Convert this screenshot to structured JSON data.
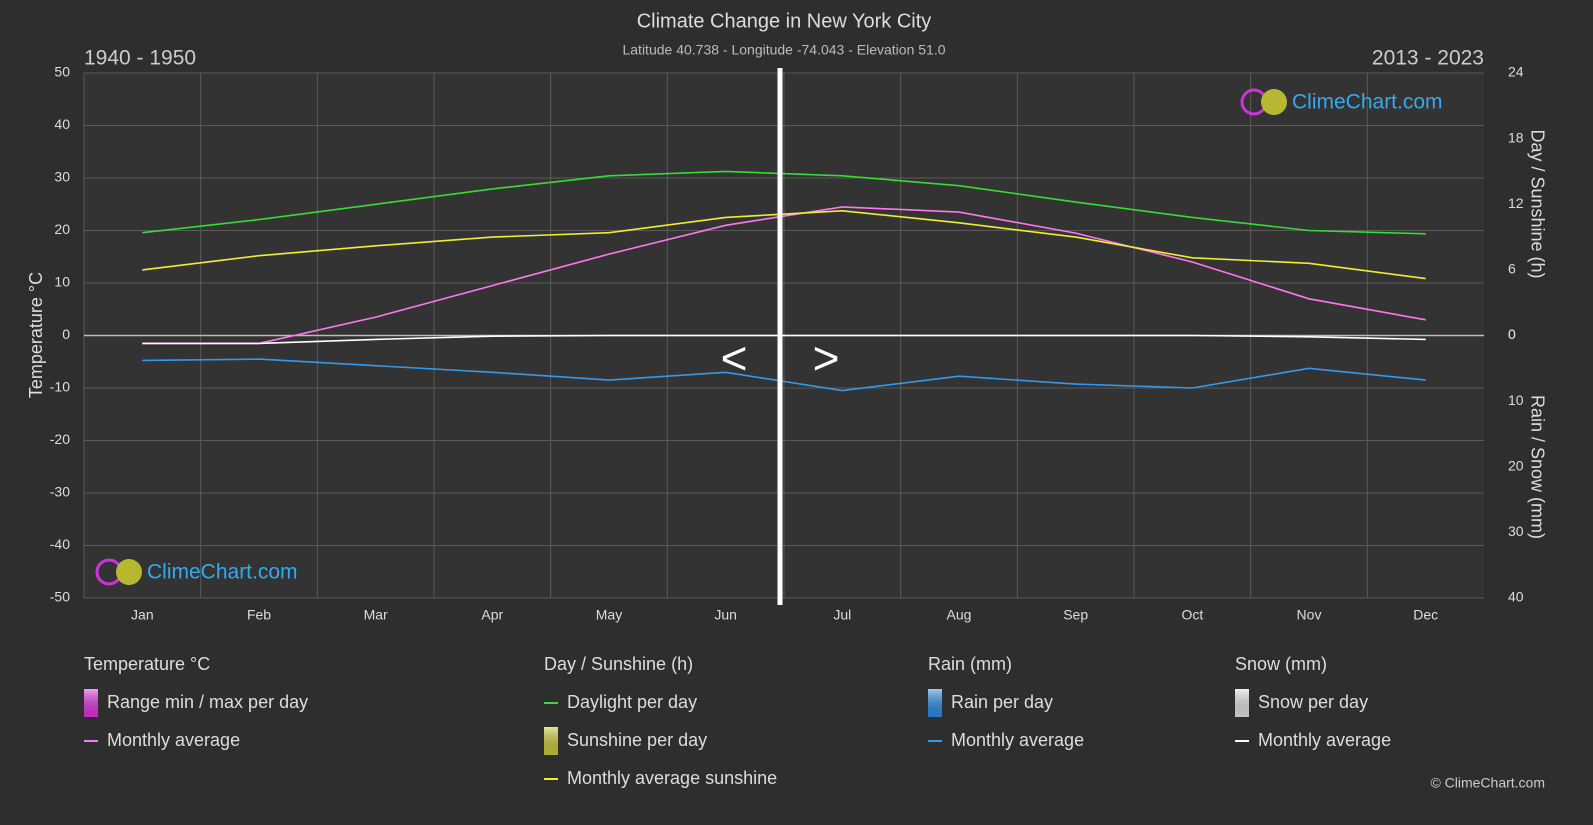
{
  "chart_data": {
    "type": "line",
    "title": "Climate Change in New York City",
    "subtitle": "Latitude 40.738 - Longitude -74.043 - Elevation 51.0",
    "period_left": "1940 - 1950",
    "period_right": "2013 - 2023",
    "nav_prev": "<",
    "nav_next": ">",
    "logo": "ClimeChart.com",
    "copyright": "© ClimeChart.com",
    "categories": [
      "Jan",
      "Feb",
      "Mar",
      "Apr",
      "May",
      "Jun",
      "Jul",
      "Aug",
      "Sep",
      "Oct",
      "Nov",
      "Dec"
    ],
    "ylabel": "Temperature °C",
    "ylim": [
      -50,
      50
    ],
    "yticks": [
      -50,
      -40,
      -30,
      -20,
      -10,
      0,
      10,
      20,
      30,
      40,
      50
    ],
    "y2label": "Day / Sunshine (h)",
    "y2lim": [
      0,
      24
    ],
    "y2ticks": [
      0,
      6,
      12,
      18,
      24
    ],
    "y3label": "Rain / Snow (mm)",
    "y3lim": [
      0,
      40
    ],
    "y3ticks": [
      0,
      10,
      20,
      30,
      40
    ],
    "grid": true,
    "groups": [
      {
        "title": "Temperature °C",
        "entries": [
          {
            "name": "Range min / max per day",
            "color": "#e030e0"
          },
          {
            "name": "Monthly average",
            "color": "#ff77ee",
            "axis": "y",
            "values": [
              -1.5,
              -1.5,
              3.5,
              9.5,
              15.5,
              21,
              24.5,
              23.5,
              19.5,
              14,
              7,
              3
            ]
          }
        ]
      },
      {
        "title": "Day / Sunshine (h)",
        "entries": [
          {
            "name": "Daylight per day",
            "color": "#33dd33",
            "axis": "y2",
            "values": [
              9.4,
              10.6,
              12,
              13.4,
              14.6,
              15,
              14.6,
              13.7,
              12.2,
              10.8,
              9.6,
              9.3
            ]
          },
          {
            "name": "Sunshine per day",
            "color": "#c8c832"
          },
          {
            "name": "Monthly average sunshine",
            "color": "#eeee33",
            "axis": "y2",
            "values": [
              6,
              7.3,
              8.2,
              9,
              9.4,
              10.8,
              11.4,
              10.3,
              9,
              7.1,
              6.6,
              5.2
            ]
          }
        ]
      },
      {
        "title": "Rain (mm)",
        "entries": [
          {
            "name": "Rain per day",
            "color": "#2a8ae0"
          },
          {
            "name": "Monthly average",
            "color": "#3399ee",
            "axis": "y3",
            "values": [
              3.8,
              3.6,
              4.6,
              5.6,
              6.8,
              5.6,
              8.4,
              6.2,
              7.4,
              8,
              5,
              6.8
            ]
          }
        ]
      },
      {
        "title": "Snow (mm)",
        "entries": [
          {
            "name": "Snow per day",
            "color": "#e0e0e0"
          },
          {
            "name": "Monthly average",
            "color": "#ffffff",
            "axis": "y3",
            "values": [
              1.2,
              1.2,
              0.6,
              0.1,
              0,
              0,
              0,
              0,
              0,
              0,
              0.2,
              0.6
            ]
          }
        ]
      }
    ]
  }
}
